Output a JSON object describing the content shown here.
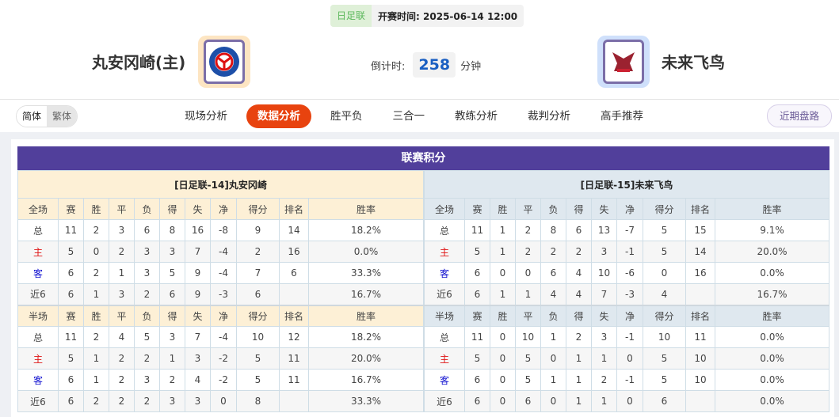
{
  "match": {
    "league": "日足联",
    "kickoff_label": "开赛时间:",
    "kickoff": "2025-06-14 12:00",
    "home": {
      "name": "丸安冈崎(主)",
      "logo": "丸安冈崎 badge"
    },
    "away": {
      "name": "未来飞鸟",
      "logo": "未来飞鸟 badge"
    },
    "countdown_label": "倒计时:",
    "countdown_value": "258",
    "countdown_unit": "分钟"
  },
  "nav": {
    "lang": [
      "简体",
      "繁体"
    ],
    "tabs": [
      {
        "label": "现场分析"
      },
      {
        "label": "数据分析",
        "active": true
      },
      {
        "label": "胜平负"
      },
      {
        "label": "三合一"
      },
      {
        "label": "教练分析"
      },
      {
        "label": "裁判分析"
      },
      {
        "label": "高手推荐"
      }
    ],
    "recent": "近期盘路"
  },
  "colors": {
    "accent": "#e8430f",
    "title_bar": "#513f9b",
    "home_header": "#fdf0d6",
    "away_header": "#dfe8ef"
  },
  "standings": {
    "title": "联赛积分",
    "columns_full": [
      "全场",
      "赛",
      "胜",
      "平",
      "负",
      "得",
      "失",
      "净",
      "得分",
      "排名",
      "胜率"
    ],
    "columns_half": [
      "半场",
      "赛",
      "胜",
      "平",
      "负",
      "得",
      "失",
      "净",
      "得分",
      "排名",
      "胜率"
    ],
    "home": {
      "header": "[日足联-14]丸安冈崎",
      "full": [
        [
          "总",
          "11",
          "2",
          "3",
          "6",
          "8",
          "16",
          "-8",
          "9",
          "14",
          "18.2%"
        ],
        [
          "主",
          "5",
          "0",
          "2",
          "3",
          "3",
          "7",
          "-4",
          "2",
          "16",
          "0.0%"
        ],
        [
          "客",
          "6",
          "2",
          "1",
          "3",
          "5",
          "9",
          "-4",
          "7",
          "6",
          "33.3%"
        ],
        [
          "近6",
          "6",
          "1",
          "3",
          "2",
          "6",
          "9",
          "-3",
          "6",
          "",
          "16.7%"
        ]
      ],
      "half": [
        [
          "总",
          "11",
          "2",
          "4",
          "5",
          "3",
          "7",
          "-4",
          "10",
          "12",
          "18.2%"
        ],
        [
          "主",
          "5",
          "1",
          "2",
          "2",
          "1",
          "3",
          "-2",
          "5",
          "11",
          "20.0%"
        ],
        [
          "客",
          "6",
          "1",
          "2",
          "3",
          "2",
          "4",
          "-2",
          "5",
          "11",
          "16.7%"
        ],
        [
          "近6",
          "6",
          "2",
          "2",
          "2",
          "3",
          "3",
          "0",
          "8",
          "",
          "33.3%"
        ]
      ]
    },
    "away": {
      "header": "[日足联-15]未来飞鸟",
      "full": [
        [
          "总",
          "11",
          "1",
          "2",
          "8",
          "6",
          "13",
          "-7",
          "5",
          "15",
          "9.1%"
        ],
        [
          "主",
          "5",
          "1",
          "2",
          "2",
          "2",
          "3",
          "-1",
          "5",
          "14",
          "20.0%"
        ],
        [
          "客",
          "6",
          "0",
          "0",
          "6",
          "4",
          "10",
          "-6",
          "0",
          "16",
          "0.0%"
        ],
        [
          "近6",
          "6",
          "1",
          "1",
          "4",
          "4",
          "7",
          "-3",
          "4",
          "",
          "16.7%"
        ]
      ],
      "half": [
        [
          "总",
          "11",
          "0",
          "10",
          "1",
          "2",
          "3",
          "-1",
          "10",
          "11",
          "0.0%"
        ],
        [
          "主",
          "5",
          "0",
          "5",
          "0",
          "1",
          "1",
          "0",
          "5",
          "10",
          "0.0%"
        ],
        [
          "客",
          "6",
          "0",
          "5",
          "1",
          "1",
          "2",
          "-1",
          "5",
          "10",
          "0.0%"
        ],
        [
          "近6",
          "6",
          "0",
          "6",
          "0",
          "1",
          "1",
          "0",
          "6",
          "",
          "0.0%"
        ]
      ]
    }
  }
}
